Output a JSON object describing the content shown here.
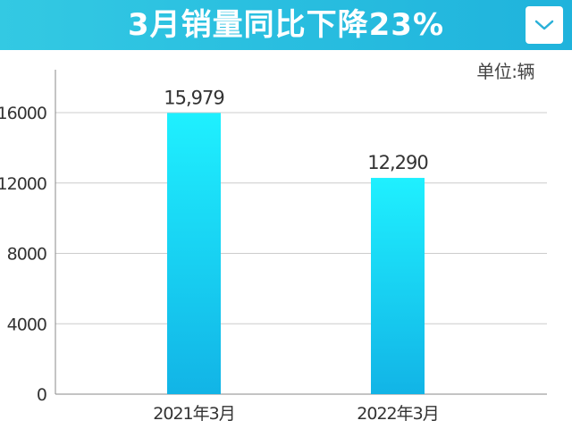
{
  "header": {
    "title": "3月销量同比下降23%",
    "button_icon": "chevron-down-icon"
  },
  "unit_label": "单位:辆",
  "colors": {
    "header": "#1fb3dc",
    "bar_top": "#1ff0ff",
    "bar_bottom": "#12b4e6"
  },
  "chart_data": {
    "type": "bar",
    "categories": [
      "2021年3月",
      "2022年3月"
    ],
    "values": [
      15979,
      12290
    ],
    "value_labels": [
      "15,979",
      "12,290"
    ],
    "yticks": [
      0,
      4000,
      8000,
      12000,
      16000
    ],
    "ylim": [
      0,
      18000
    ],
    "grid": true
  }
}
